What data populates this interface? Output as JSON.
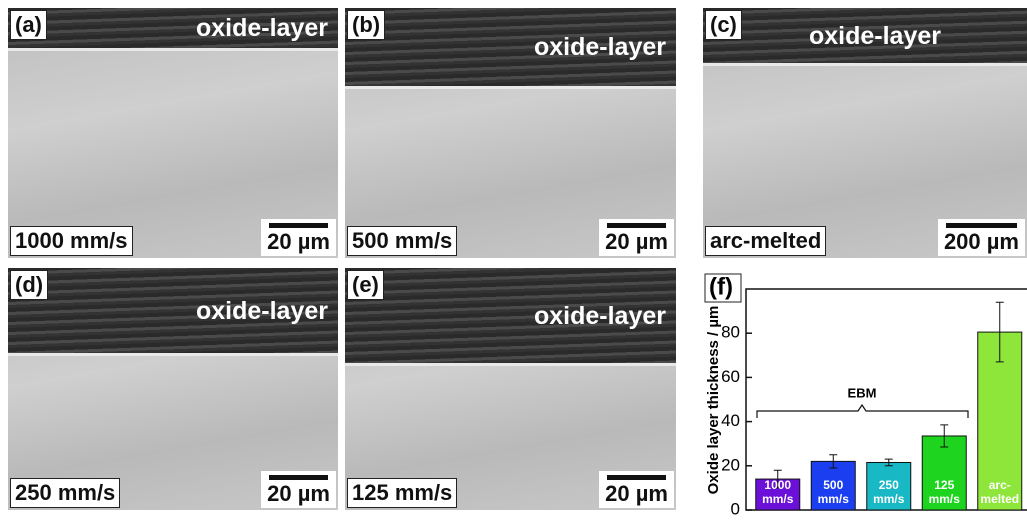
{
  "panels": [
    {
      "label": "(a)",
      "annotation": "oxide-layer",
      "condition": "1000 mm/s",
      "scale": "20 µm"
    },
    {
      "label": "(b)",
      "annotation": "oxide-layer",
      "condition": "500 mm/s",
      "scale": "20 µm"
    },
    {
      "label": "(c)",
      "annotation": "oxide-layer",
      "condition": "arc-melted",
      "scale": "200 µm"
    },
    {
      "label": "(d)",
      "annotation": "oxide-layer",
      "condition": "250 mm/s",
      "scale": "20 µm"
    },
    {
      "label": "(e)",
      "annotation": "oxide-layer",
      "condition": "125 mm/s",
      "scale": "20 µm"
    }
  ],
  "chart_data": {
    "type": "bar",
    "label": "(f)",
    "ylabel": "Oxide layer thickness / µm",
    "annotation": "EBM",
    "categories": [
      "1000 mm/s",
      "500 mm/s",
      "250 mm/s",
      "125 mm/s",
      "arc- melted"
    ],
    "values": [
      14,
      22,
      21.5,
      33.5,
      80.5
    ],
    "errors": [
      4,
      3,
      1.5,
      5,
      13.5
    ],
    "colors": [
      "#6a10d8",
      "#1a3ef0",
      "#18b8c4",
      "#1ed41e",
      "#8ee63a"
    ],
    "ylim": [
      0,
      100
    ],
    "yticks": [
      0,
      20,
      40,
      60,
      80
    ]
  }
}
